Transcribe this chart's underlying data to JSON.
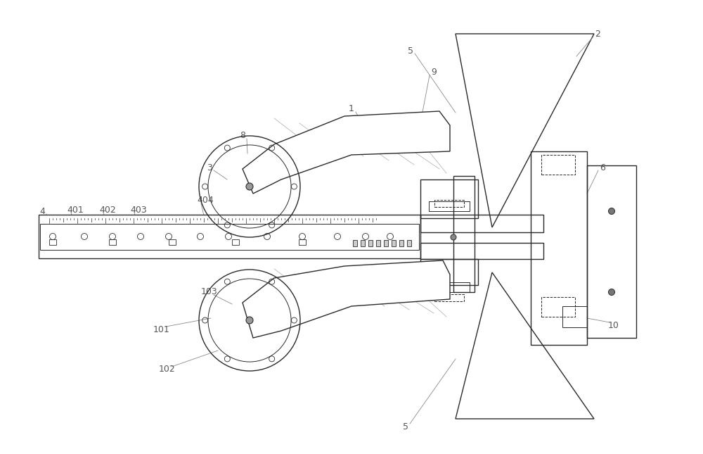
{
  "bg_color": "#ffffff",
  "line_color": "#2a2a2a",
  "gray_color": "#666666",
  "label_color": "#555555",
  "hatch_color": "#aaaaaa",
  "figsize": [
    10.0,
    6.45
  ],
  "dpi": 100
}
